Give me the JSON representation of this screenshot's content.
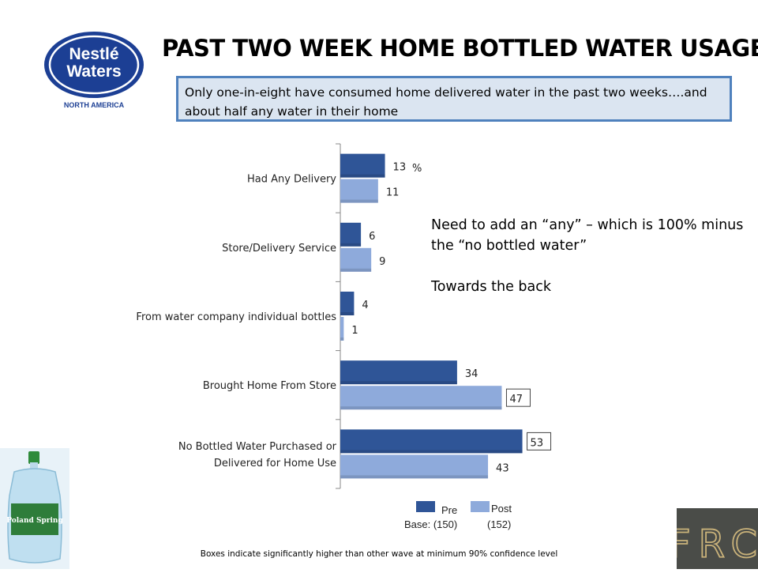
{
  "header": {
    "title": "PAST TWO WEEK HOME BOTTLED WATER USAGE",
    "subtitle": "Only one-in-eight have consumed home delivered water in the past two weeks….and about half any water in their home"
  },
  "logo": {
    "brand_line1": "Nestlé",
    "brand_line2": "Waters",
    "tagline": "NORTH AMERICA"
  },
  "jug_label": "Poland Spring",
  "frc_logo_text": "FRC",
  "chart_data": {
    "type": "bar",
    "orientation": "horizontal",
    "unit_label": "%",
    "categories": [
      "Had  Any Delivery",
      "Store/Delivery Service",
      "From water company individual bottles",
      "Brought Home From Store",
      "No Bottled Water Purchased or Delivered for Home Use"
    ],
    "category_lines": [
      [
        "Had  Any Delivery"
      ],
      [
        "Store/Delivery Service"
      ],
      [
        "From water company individual bottles"
      ],
      [
        "Brought Home From Store"
      ],
      [
        "No Bottled Water Purchased or",
        "Delivered for Home Use"
      ]
    ],
    "series": [
      {
        "name": "Pre",
        "values": [
          13,
          6,
          4,
          34,
          53
        ],
        "boxed": [
          false,
          false,
          false,
          false,
          true
        ],
        "color": "#2f5597"
      },
      {
        "name": "Post",
        "values": [
          11,
          9,
          1,
          47,
          43
        ],
        "boxed": [
          false,
          false,
          false,
          true,
          false
        ],
        "color": "#8eaadb"
      }
    ],
    "xlim": [
      0,
      100
    ],
    "grid": false,
    "legend_position": "bottom"
  },
  "legend": {
    "pre_label": "Pre",
    "post_label": "Post",
    "base_label": "Base: (150)",
    "post_base": "(152)"
  },
  "note": {
    "line1": "Need to add an “any” – which is 100% minus the “no bottled water”",
    "line2": "Towards the back"
  },
  "footnote": "Boxes indicate significantly higher than other wave at minimum 90% confidence level",
  "colors": {
    "accent": "#4f81bd",
    "subtitle_bg": "#dbe5f1",
    "pre": "#2f5597",
    "post": "#8eaadb",
    "frc_bg": "#4a4c48"
  }
}
